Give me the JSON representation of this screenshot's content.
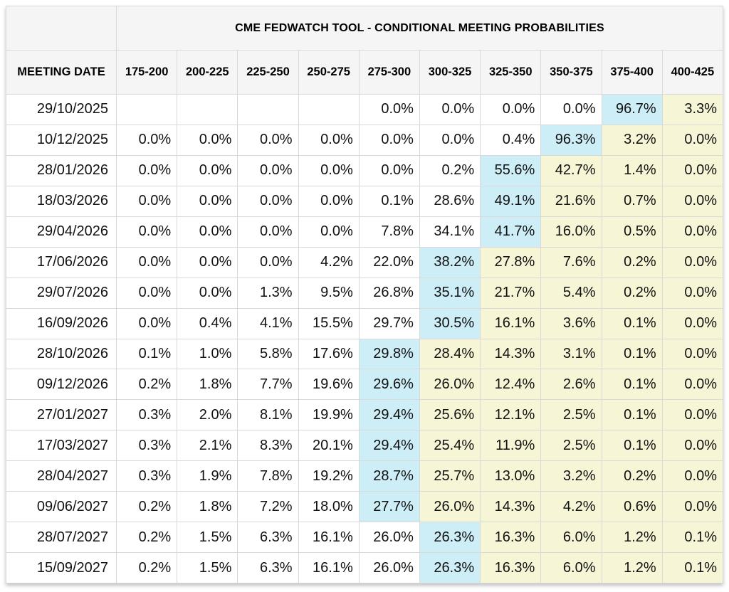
{
  "colors": {
    "highlight_blue": "#cdeef7",
    "highlight_yellow": "#f6f6d6",
    "header_background": "#f5f5f5",
    "grid_border": "#d9d9d9",
    "text": "#111111"
  },
  "chart_data": {
    "type": "table",
    "title": "CME FEDWATCH TOOL - CONDITIONAL MEETING PROBABILITIES",
    "row_header": "MEETING DATE",
    "columns": [
      "175-200",
      "200-225",
      "225-250",
      "250-275",
      "275-300",
      "300-325",
      "325-350",
      "350-375",
      "375-400",
      "400-425"
    ],
    "rows": [
      {
        "date": "29/10/2025",
        "values": [
          "",
          "",
          "",
          "",
          "0.0%",
          "0.0%",
          "0.0%",
          "0.0%",
          "96.7%",
          "3.3%"
        ],
        "highlights": [
          "",
          "",
          "",
          "",
          "",
          "",
          "",
          "",
          "blue",
          "yellow"
        ]
      },
      {
        "date": "10/12/2025",
        "values": [
          "0.0%",
          "0.0%",
          "0.0%",
          "0.0%",
          "0.0%",
          "0.0%",
          "0.4%",
          "96.3%",
          "3.2%",
          "0.0%"
        ],
        "highlights": [
          "",
          "",
          "",
          "",
          "",
          "",
          "",
          "blue",
          "yellow",
          "yellow"
        ]
      },
      {
        "date": "28/01/2026",
        "values": [
          "0.0%",
          "0.0%",
          "0.0%",
          "0.0%",
          "0.0%",
          "0.2%",
          "55.6%",
          "42.7%",
          "1.4%",
          "0.0%"
        ],
        "highlights": [
          "",
          "",
          "",
          "",
          "",
          "",
          "blue",
          "yellow",
          "yellow",
          "yellow"
        ]
      },
      {
        "date": "18/03/2026",
        "values": [
          "0.0%",
          "0.0%",
          "0.0%",
          "0.0%",
          "0.1%",
          "28.6%",
          "49.1%",
          "21.6%",
          "0.7%",
          "0.0%"
        ],
        "highlights": [
          "",
          "",
          "",
          "",
          "",
          "",
          "blue",
          "yellow",
          "yellow",
          "yellow"
        ]
      },
      {
        "date": "29/04/2026",
        "values": [
          "0.0%",
          "0.0%",
          "0.0%",
          "0.0%",
          "7.8%",
          "34.1%",
          "41.7%",
          "16.0%",
          "0.5%",
          "0.0%"
        ],
        "highlights": [
          "",
          "",
          "",
          "",
          "",
          "",
          "blue",
          "yellow",
          "yellow",
          "yellow"
        ]
      },
      {
        "date": "17/06/2026",
        "values": [
          "0.0%",
          "0.0%",
          "0.0%",
          "4.2%",
          "22.0%",
          "38.2%",
          "27.8%",
          "7.6%",
          "0.2%",
          "0.0%"
        ],
        "highlights": [
          "",
          "",
          "",
          "",
          "",
          "blue",
          "yellow",
          "yellow",
          "yellow",
          "yellow"
        ]
      },
      {
        "date": "29/07/2026",
        "values": [
          "0.0%",
          "0.0%",
          "1.3%",
          "9.5%",
          "26.8%",
          "35.1%",
          "21.7%",
          "5.4%",
          "0.2%",
          "0.0%"
        ],
        "highlights": [
          "",
          "",
          "",
          "",
          "",
          "blue",
          "yellow",
          "yellow",
          "yellow",
          "yellow"
        ]
      },
      {
        "date": "16/09/2026",
        "values": [
          "0.0%",
          "0.4%",
          "4.1%",
          "15.5%",
          "29.7%",
          "30.5%",
          "16.1%",
          "3.6%",
          "0.1%",
          "0.0%"
        ],
        "highlights": [
          "",
          "",
          "",
          "",
          "",
          "blue",
          "yellow",
          "yellow",
          "yellow",
          "yellow"
        ]
      },
      {
        "date": "28/10/2026",
        "values": [
          "0.1%",
          "1.0%",
          "5.8%",
          "17.6%",
          "29.8%",
          "28.4%",
          "14.3%",
          "3.1%",
          "0.1%",
          "0.0%"
        ],
        "highlights": [
          "",
          "",
          "",
          "",
          "blue",
          "yellow",
          "yellow",
          "yellow",
          "yellow",
          "yellow"
        ]
      },
      {
        "date": "09/12/2026",
        "values": [
          "0.2%",
          "1.8%",
          "7.7%",
          "19.6%",
          "29.6%",
          "26.0%",
          "12.4%",
          "2.6%",
          "0.1%",
          "0.0%"
        ],
        "highlights": [
          "",
          "",
          "",
          "",
          "blue",
          "yellow",
          "yellow",
          "yellow",
          "yellow",
          "yellow"
        ]
      },
      {
        "date": "27/01/2027",
        "values": [
          "0.3%",
          "2.0%",
          "8.1%",
          "19.9%",
          "29.4%",
          "25.6%",
          "12.1%",
          "2.5%",
          "0.1%",
          "0.0%"
        ],
        "highlights": [
          "",
          "",
          "",
          "",
          "blue",
          "yellow",
          "yellow",
          "yellow",
          "yellow",
          "yellow"
        ]
      },
      {
        "date": "17/03/2027",
        "values": [
          "0.3%",
          "2.1%",
          "8.3%",
          "20.1%",
          "29.4%",
          "25.4%",
          "11.9%",
          "2.5%",
          "0.1%",
          "0.0%"
        ],
        "highlights": [
          "",
          "",
          "",
          "",
          "blue",
          "yellow",
          "yellow",
          "yellow",
          "yellow",
          "yellow"
        ]
      },
      {
        "date": "28/04/2027",
        "values": [
          "0.3%",
          "1.9%",
          "7.8%",
          "19.2%",
          "28.7%",
          "25.7%",
          "13.0%",
          "3.2%",
          "0.2%",
          "0.0%"
        ],
        "highlights": [
          "",
          "",
          "",
          "",
          "blue",
          "yellow",
          "yellow",
          "yellow",
          "yellow",
          "yellow"
        ]
      },
      {
        "date": "09/06/2027",
        "values": [
          "0.2%",
          "1.8%",
          "7.2%",
          "18.0%",
          "27.7%",
          "26.0%",
          "14.3%",
          "4.2%",
          "0.6%",
          "0.0%"
        ],
        "highlights": [
          "",
          "",
          "",
          "",
          "blue",
          "yellow",
          "yellow",
          "yellow",
          "yellow",
          "yellow"
        ]
      },
      {
        "date": "28/07/2027",
        "values": [
          "0.2%",
          "1.5%",
          "6.3%",
          "16.1%",
          "26.0%",
          "26.3%",
          "16.3%",
          "6.0%",
          "1.2%",
          "0.1%"
        ],
        "highlights": [
          "",
          "",
          "",
          "",
          "",
          "blue",
          "yellow",
          "yellow",
          "yellow",
          "yellow"
        ]
      },
      {
        "date": "15/09/2027",
        "values": [
          "0.2%",
          "1.5%",
          "6.3%",
          "16.1%",
          "26.0%",
          "26.3%",
          "16.3%",
          "6.0%",
          "1.2%",
          "0.1%"
        ],
        "highlights": [
          "",
          "",
          "",
          "",
          "",
          "blue",
          "yellow",
          "yellow",
          "yellow",
          "yellow"
        ]
      }
    ]
  }
}
